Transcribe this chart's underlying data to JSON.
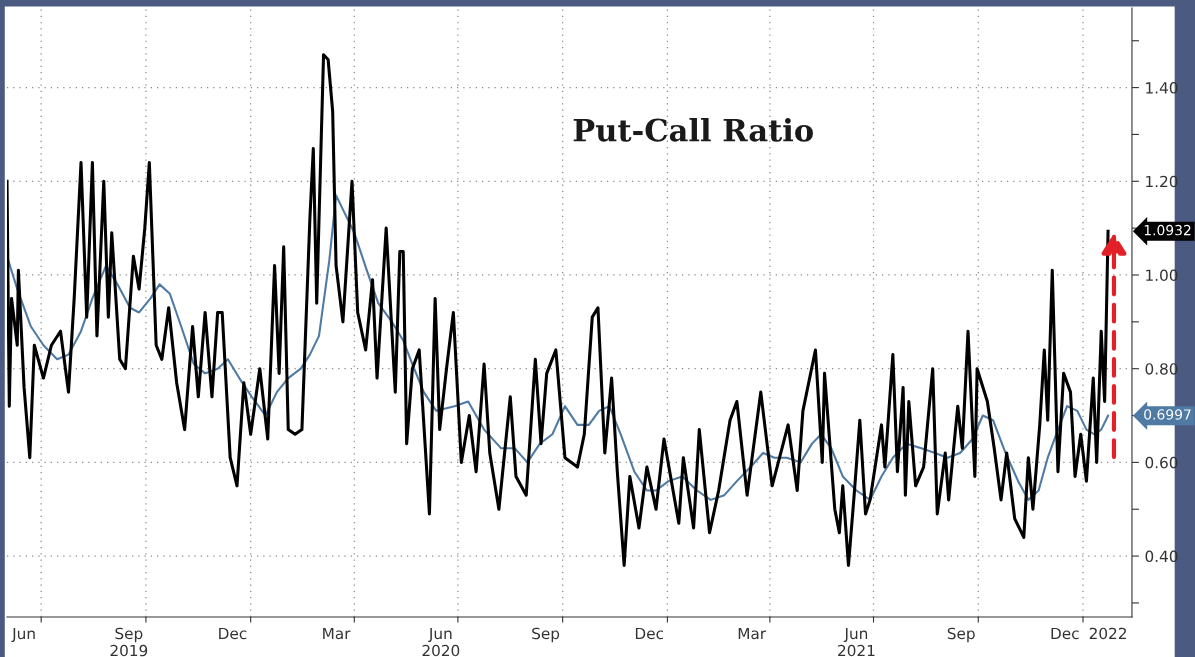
{
  "chart_data": {
    "type": "line",
    "title": "Put-Call Ratio",
    "xlim": [
      "2019-06-01",
      "2022-02-13"
    ],
    "ylim": [
      0.27,
      1.57
    ],
    "yticks": [
      {
        "value": 0.3,
        "label": null
      },
      {
        "value": 0.4,
        "label": "0.40"
      },
      {
        "value": 0.5,
        "label": null
      },
      {
        "value": 0.6,
        "label": "0.60"
      },
      {
        "value": 0.7,
        "label": null
      },
      {
        "value": 0.8,
        "label": "0.80"
      },
      {
        "value": 0.9,
        "label": null
      },
      {
        "value": 1.0,
        "label": "1.00"
      },
      {
        "value": 1.1,
        "label": null
      },
      {
        "value": 1.2,
        "label": "1.20"
      },
      {
        "value": 1.3,
        "label": null
      },
      {
        "value": 1.4,
        "label": "1.40"
      },
      {
        "value": 1.5,
        "label": null
      }
    ],
    "xticks": [
      {
        "value": "2019-06-16",
        "label": "Jun"
      },
      {
        "value": "2019-07-01",
        "label": null
      },
      {
        "value": "2019-09-16",
        "label": "Sep\n2019"
      },
      {
        "value": "2019-10-01",
        "label": null
      },
      {
        "value": "2019-12-16",
        "label": "Dec"
      },
      {
        "value": "2020-01-01",
        "label": null
      },
      {
        "value": "2020-03-16",
        "label": "Mar"
      },
      {
        "value": "2020-04-01",
        "label": null
      },
      {
        "value": "2020-06-16",
        "label": "Jun\n2020"
      },
      {
        "value": "2020-07-01",
        "label": null
      },
      {
        "value": "2020-09-16",
        "label": "Sep"
      },
      {
        "value": "2020-10-01",
        "label": null
      },
      {
        "value": "2020-12-16",
        "label": "Dec"
      },
      {
        "value": "2021-01-01",
        "label": null
      },
      {
        "value": "2021-03-16",
        "label": "Mar"
      },
      {
        "value": "2021-04-01",
        "label": null
      },
      {
        "value": "2021-06-16",
        "label": "Jun\n2021"
      },
      {
        "value": "2021-07-01",
        "label": null
      },
      {
        "value": "2021-09-16",
        "label": "Sep"
      },
      {
        "value": "2021-10-01",
        "label": null
      },
      {
        "value": "2021-12-16",
        "label": "Dec"
      },
      {
        "value": "2022-01-01",
        "label": null
      },
      {
        "value": "2022-01-23",
        "label": "2022"
      }
    ],
    "grid": true,
    "series": [
      {
        "color": "#000000",
        "x": [
          "2019-06-01",
          "2019-06-03",
          "2019-06-05",
          "2019-06-10",
          "2019-06-11",
          "2019-06-16",
          "2019-06-21",
          "2019-06-25",
          "2019-07-03",
          "2019-07-10",
          "2019-07-18",
          "2019-07-25",
          "2019-07-30",
          "2019-08-05",
          "2019-08-10",
          "2019-08-15",
          "2019-08-19",
          "2019-08-25",
          "2019-08-29",
          "2019-09-01",
          "2019-09-08",
          "2019-09-13",
          "2019-09-20",
          "2019-09-25",
          "2019-09-30",
          "2019-10-04",
          "2019-10-10",
          "2019-10-15",
          "2019-10-21",
          "2019-10-28",
          "2019-11-04",
          "2019-11-11",
          "2019-11-16",
          "2019-11-22",
          "2019-11-28",
          "2019-12-03",
          "2019-12-07",
          "2019-12-14",
          "2019-12-20",
          "2019-12-26",
          "2020-01-01",
          "2020-01-09",
          "2020-01-16",
          "2020-01-22",
          "2020-01-26",
          "2020-01-30",
          "2020-02-03",
          "2020-02-09",
          "2020-02-15",
          "2020-02-22",
          "2020-02-25",
          "2020-02-28",
          "2020-03-05",
          "2020-03-09",
          "2020-03-13",
          "2020-03-16",
          "2020-03-22",
          "2020-03-30",
          "2020-04-04",
          "2020-04-11",
          "2020-04-17",
          "2020-04-21",
          "2020-04-29",
          "2020-05-07",
          "2020-05-11",
          "2020-05-14",
          "2020-05-17",
          "2020-05-22",
          "2020-05-28",
          "2020-06-06",
          "2020-06-11",
          "2020-06-15",
          "2020-06-21",
          "2020-06-27",
          "2020-07-04",
          "2020-07-11",
          "2020-07-17",
          "2020-07-24",
          "2020-07-29",
          "2020-08-06",
          "2020-08-16",
          "2020-08-21",
          "2020-08-30",
          "2020-09-07",
          "2020-09-12",
          "2020-09-17",
          "2020-09-25",
          "2020-10-03",
          "2020-10-14",
          "2020-10-20",
          "2020-10-27",
          "2020-11-01",
          "2020-11-07",
          "2020-11-13",
          "2020-11-18",
          "2020-11-24",
          "2020-11-29",
          "2020-12-07",
          "2020-12-14",
          "2020-12-22",
          "2020-12-29",
          "2021-01-11",
          "2021-01-15",
          "2021-01-24",
          "2021-01-29",
          "2021-02-07",
          "2021-02-15",
          "2021-02-25",
          "2021-03-03",
          "2021-03-12",
          "2021-03-24",
          "2021-04-03",
          "2021-04-17",
          "2021-04-25",
          "2021-04-30",
          "2021-05-11",
          "2021-05-17",
          "2021-05-19",
          "2021-05-28",
          "2021-06-01",
          "2021-06-04",
          "2021-06-09",
          "2021-06-14",
          "2021-06-19",
          "2021-06-24",
          "2021-06-28",
          "2021-07-08",
          "2021-07-11",
          "2021-07-18",
          "2021-07-22",
          "2021-07-27",
          "2021-07-29",
          "2021-08-01",
          "2021-08-07",
          "2021-08-14",
          "2021-08-22",
          "2021-08-26",
          "2021-09-02",
          "2021-09-05",
          "2021-09-13",
          "2021-09-17",
          "2021-09-22",
          "2021-09-28",
          "2021-09-30",
          "2021-10-09",
          "2021-10-15",
          "2021-10-21",
          "2021-10-26",
          "2021-11-02",
          "2021-11-10",
          "2021-11-14",
          "2021-11-18",
          "2021-11-24",
          "2021-11-28",
          "2021-12-01",
          "2021-12-05",
          "2021-12-10",
          "2021-12-15",
          "2021-12-21",
          "2021-12-25",
          "2021-12-30",
          "2022-01-04",
          "2022-01-10",
          "2022-01-13",
          "2022-01-17",
          "2022-01-20",
          "2022-01-23"
        ],
        "values": [
          1.2,
          0.72,
          0.95,
          0.85,
          1.01,
          0.76,
          0.61,
          0.85,
          0.78,
          0.85,
          0.88,
          0.75,
          0.95,
          1.24,
          0.91,
          1.24,
          0.87,
          1.2,
          0.91,
          1.09,
          0.82,
          0.8,
          1.04,
          0.97,
          1.1,
          1.24,
          0.85,
          0.82,
          0.93,
          0.77,
          0.67,
          0.89,
          0.74,
          0.92,
          0.74,
          0.92,
          0.92,
          0.61,
          0.55,
          0.77,
          0.66,
          0.8,
          0.65,
          1.02,
          0.79,
          1.06,
          0.67,
          0.66,
          0.67,
          1.12,
          1.27,
          0.94,
          1.47,
          1.46,
          1.35,
          1.02,
          0.9,
          1.2,
          0.92,
          0.84,
          0.99,
          0.78,
          1.1,
          0.75,
          1.05,
          1.05,
          0.64,
          0.8,
          0.84,
          0.49,
          0.95,
          0.67,
          0.8,
          0.92,
          0.6,
          0.7,
          0.58,
          0.81,
          0.62,
          0.5,
          0.74,
          0.57,
          0.53,
          0.82,
          0.64,
          0.79,
          0.84,
          0.61,
          0.59,
          0.66,
          0.91,
          0.93,
          0.62,
          0.78,
          0.58,
          0.38,
          0.57,
          0.46,
          0.59,
          0.5,
          0.65,
          0.47,
          0.61,
          0.46,
          0.67,
          0.45,
          0.54,
          0.69,
          0.73,
          0.53,
          0.75,
          0.55,
          0.68,
          0.54,
          0.71,
          0.84,
          0.6,
          0.79,
          0.5,
          0.45,
          0.55,
          0.38,
          0.53,
          0.69,
          0.49,
          0.52,
          0.68,
          0.59,
          0.83,
          0.58,
          0.76,
          0.53,
          0.73,
          0.55,
          0.59,
          0.8,
          0.49,
          0.62,
          0.52,
          0.72,
          0.63,
          0.88,
          0.57,
          0.8,
          0.73,
          0.63,
          0.52,
          0.62,
          0.48,
          0.44,
          0.61,
          0.5,
          0.68,
          0.84,
          0.69,
          1.01,
          0.58,
          0.79,
          0.75,
          0.57,
          0.66,
          0.56,
          0.78,
          0.6,
          0.88,
          0.73,
          1.0932
        ]
      },
      {
        "color": "#4f7aa3",
        "x": [
          "2019-06-01",
          "2019-06-10",
          "2019-06-22",
          "2019-07-03",
          "2019-07-15",
          "2019-07-25",
          "2019-08-05",
          "2019-08-15",
          "2019-08-27",
          "2019-09-06",
          "2019-09-17",
          "2019-09-25",
          "2019-10-05",
          "2019-10-13",
          "2019-10-22",
          "2019-11-01",
          "2019-11-12",
          "2019-11-22",
          "2019-12-03",
          "2019-12-12",
          "2019-12-22",
          "2020-01-02",
          "2020-01-14",
          "2020-01-24",
          "2020-02-03",
          "2020-02-14",
          "2020-02-22",
          "2020-03-01",
          "2020-03-10",
          "2020-03-16",
          "2020-03-24",
          "2020-04-01",
          "2020-04-12",
          "2020-04-22",
          "2020-05-04",
          "2020-05-14",
          "2020-05-22",
          "2020-06-01",
          "2020-06-12",
          "2020-06-28",
          "2020-07-10",
          "2020-07-24",
          "2020-08-08",
          "2020-08-20",
          "2020-08-31",
          "2020-09-11",
          "2020-09-22",
          "2020-10-03",
          "2020-10-14",
          "2020-10-24",
          "2020-11-02",
          "2020-11-11",
          "2020-11-21",
          "2020-12-03",
          "2020-12-14",
          "2020-12-22",
          "2021-01-02",
          "2021-01-14",
          "2021-01-27",
          "2021-02-08",
          "2021-02-20",
          "2021-03-03",
          "2021-03-15",
          "2021-03-26",
          "2021-04-05",
          "2021-04-16",
          "2021-04-28",
          "2021-05-08",
          "2021-05-16",
          "2021-05-25",
          "2021-06-04",
          "2021-06-16",
          "2021-06-28",
          "2021-07-08",
          "2021-07-18",
          "2021-07-30",
          "2021-08-12",
          "2021-08-24",
          "2021-09-04",
          "2021-09-15",
          "2021-09-26",
          "2021-10-05",
          "2021-10-14",
          "2021-10-25",
          "2021-11-05",
          "2021-11-14",
          "2021-11-23",
          "2021-12-01",
          "2021-12-10",
          "2021-12-18",
          "2021-12-27",
          "2022-01-04",
          "2022-01-11",
          "2022-01-17",
          "2022-01-23"
        ],
        "values": [
          1.04,
          0.97,
          0.89,
          0.85,
          0.82,
          0.83,
          0.88,
          0.95,
          1.02,
          0.98,
          0.93,
          0.92,
          0.95,
          0.98,
          0.96,
          0.89,
          0.81,
          0.79,
          0.8,
          0.82,
          0.78,
          0.74,
          0.7,
          0.75,
          0.78,
          0.8,
          0.83,
          0.87,
          1.03,
          1.17,
          1.13,
          1.09,
          1.01,
          0.94,
          0.9,
          0.86,
          0.81,
          0.75,
          0.71,
          0.72,
          0.73,
          0.67,
          0.63,
          0.63,
          0.6,
          0.64,
          0.66,
          0.72,
          0.68,
          0.68,
          0.71,
          0.72,
          0.66,
          0.58,
          0.54,
          0.54,
          0.56,
          0.57,
          0.54,
          0.52,
          0.53,
          0.56,
          0.59,
          0.62,
          0.61,
          0.61,
          0.6,
          0.64,
          0.66,
          0.63,
          0.57,
          0.54,
          0.52,
          0.57,
          0.61,
          0.64,
          0.63,
          0.62,
          0.61,
          0.62,
          0.65,
          0.7,
          0.69,
          0.62,
          0.56,
          0.52,
          0.54,
          0.61,
          0.67,
          0.72,
          0.71,
          0.67,
          0.66,
          0.67,
          0.6997
        ]
      }
    ],
    "annotations": [
      {
        "text": "1.0932",
        "x": "2022-01-23",
        "y": 1.0932
      },
      {
        "text": "0.6997",
        "x": "2022-01-23",
        "y": 0.6997
      }
    ]
  }
}
